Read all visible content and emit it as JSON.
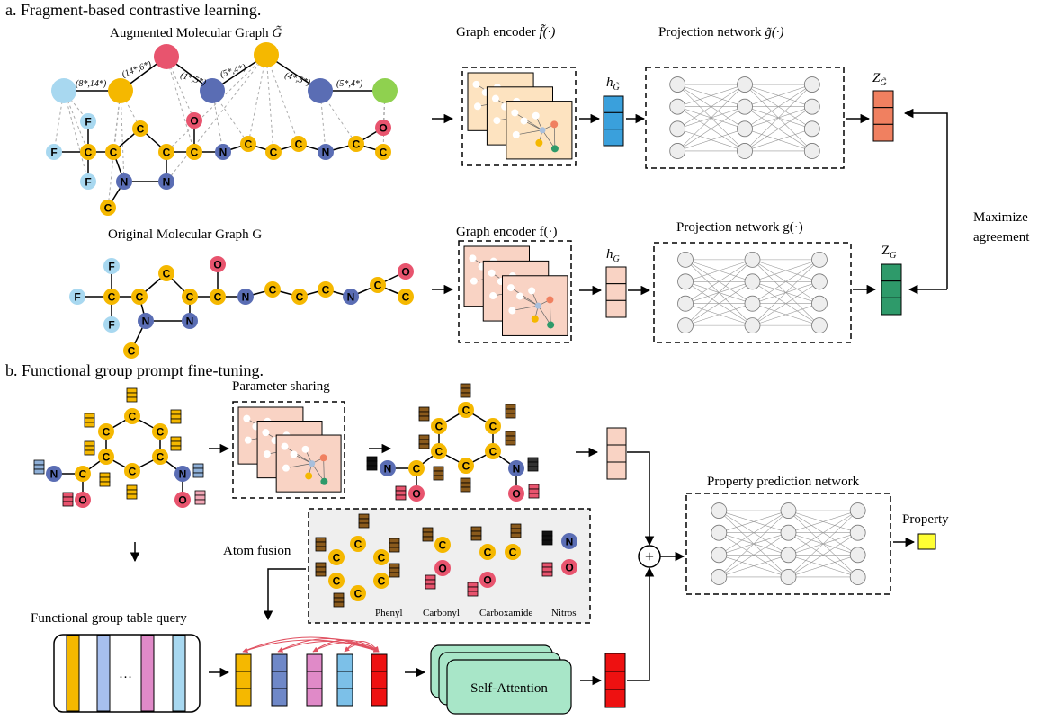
{
  "sections": {
    "a_title": "a. Fragment-based contrastive learning.",
    "b_title": "b. Functional group prompt fine-tuning."
  },
  "labels": {
    "augmented_graph": "Augmented Molecular Graph",
    "augmented_graph_symbol": "G̃",
    "original_graph": "Original Molecular Graph G",
    "graph_encoder_aug": "Graph encoder",
    "graph_encoder_aug_symbol": "f̃(·)",
    "projection_aug": "Projection network",
    "projection_aug_symbol": "g̃(·)",
    "graph_encoder_orig": "Graph encoder f(·)",
    "projection_orig": "Projection network g(·)",
    "h_aug": "h",
    "h_aug_sub": "G̃",
    "h_orig": "h",
    "h_orig_sub": "G",
    "z_aug": "Z",
    "z_aug_sub": "G̃",
    "z_orig": "Z",
    "z_orig_sub": "G",
    "maximize_1": "Maximize",
    "maximize_2": "agreement",
    "parameter_sharing": "Parameter sharing",
    "atom_fusion": "Atom fusion",
    "functional_group_table": "Functional group table query",
    "self_attention": "Self-Attention",
    "property_network": "Property prediction network",
    "property": "Property",
    "ellipsis": "…",
    "plus": "+"
  },
  "fragment_labels": [
    "(8*,14*)",
    "(14*,6*)",
    "(1*,5*)",
    "(5*,4*)",
    "(4*,5*)",
    "(5*,4*)"
  ],
  "functional_groups": [
    "Phenyl",
    "Carbonyl",
    "Carboxamide",
    "Nitros"
  ],
  "atoms": {
    "aug": [
      "F",
      "F",
      "C",
      "F",
      "C",
      "C",
      "C",
      "N",
      "N",
      "C",
      "O",
      "C",
      "N",
      "C",
      "C",
      "C",
      "N",
      "C",
      "O",
      "C"
    ],
    "orig": [
      "F",
      "F",
      "C",
      "F",
      "C",
      "C",
      "C",
      "N",
      "N",
      "C",
      "O",
      "C",
      "N",
      "C",
      "C",
      "C",
      "N",
      "C",
      "O",
      "C"
    ],
    "b_mol": [
      "C",
      "C",
      "C",
      "C",
      "C",
      "C",
      "N",
      "C",
      "O",
      "N",
      "O"
    ],
    "b_out": [
      "C",
      "C",
      "C",
      "C",
      "C",
      "C",
      "N",
      "C",
      "O",
      "N",
      "O"
    ],
    "fusion": [
      "C",
      "C",
      "C",
      "C",
      "C",
      "C",
      "C",
      "O",
      "C",
      "C",
      "O",
      "N",
      "O"
    ]
  },
  "colors": {
    "carbon": "#f5b800",
    "nitrogen": "#5a6db4",
    "oxygen": "#e8546e",
    "fluorine": "#a8d8f0",
    "frag_pink": "#e8546e",
    "frag_green": "#8fd14f",
    "enc_aug_fill": "#fde3c0",
    "enc_orig_fill": "#f9d3c4",
    "h_aug_fill": "#3aa0dc",
    "h_orig_fill": "#f9d3c4",
    "z_aug_fill": "#f08060",
    "z_orig_fill": "#2e9a6a",
    "prompt_brown": "#8a5a1c",
    "prompt_yellow": "#f5b800",
    "prompt_red": "#e8546e",
    "prompt_blue": "#8fb0d8",
    "prompt_pink": "#f2a6b6",
    "self_attention": "#a8e6c8",
    "property_box": "#ffff33",
    "fusion_bg": "#efefef",
    "table_colors": [
      "#f5b800",
      "#ffffff",
      "#a7bfee",
      "#ffffff",
      "#e08ac8",
      "#ffffff",
      "#a8d8f0"
    ],
    "query_colors": [
      "#f5b800",
      "#6f88c8",
      "#e08ac8",
      "#7cc0e8",
      "#ee1111"
    ]
  }
}
